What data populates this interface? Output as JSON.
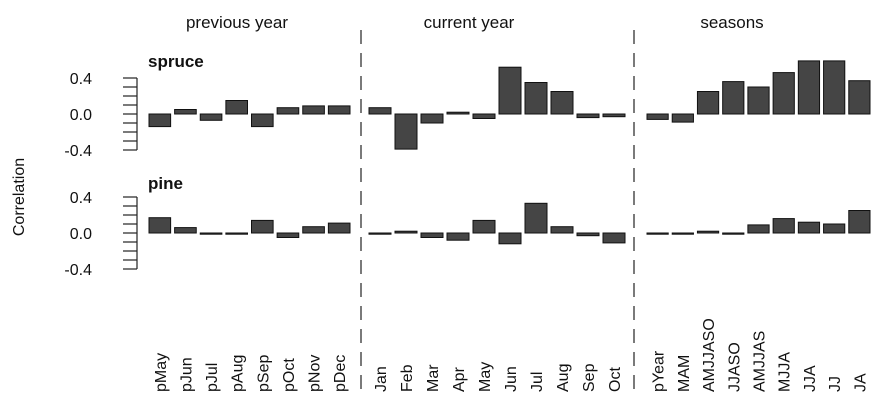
{
  "chart_data": {
    "type": "bar",
    "ylabel": "Correlation",
    "ylim": [
      -0.4,
      0.6
    ],
    "yticks": [
      0.4,
      0.0,
      -0.4
    ],
    "ytick_labels": [
      "0.4",
      "0.0",
      "-0.4"
    ],
    "grid": false,
    "bar_color": "#454545",
    "groups": [
      {
        "title": "previous year",
        "categories": [
          "pMay",
          "pJun",
          "pJul",
          "pAug",
          "pSep",
          "pOct",
          "pNov",
          "pDec"
        ]
      },
      {
        "title": "current year",
        "categories": [
          "Jan",
          "Feb",
          "Mar",
          "Apr",
          "May",
          "Jun",
          "Jul",
          "Aug",
          "Sep",
          "Oct"
        ]
      },
      {
        "title": "seasons",
        "categories": [
          "pYear",
          "MAM",
          "AMJJASO",
          "JJASO",
          "AMJJAS",
          "MJJA",
          "JJA",
          "JJ",
          "JA"
        ]
      }
    ],
    "series": [
      {
        "name": "spruce",
        "values": [
          -0.14,
          0.05,
          -0.07,
          0.15,
          -0.14,
          0.07,
          0.09,
          0.09,
          0.07,
          -0.39,
          -0.1,
          0.02,
          -0.05,
          0.52,
          0.35,
          0.25,
          -0.04,
          -0.03,
          -0.06,
          -0.09,
          0.25,
          0.36,
          0.3,
          0.46,
          0.59,
          0.59,
          0.37
        ]
      },
      {
        "name": "pine",
        "values": [
          0.17,
          0.06,
          -0.01,
          -0.01,
          0.14,
          -0.05,
          0.07,
          0.11,
          0.0,
          0.02,
          -0.05,
          -0.08,
          0.14,
          -0.12,
          0.33,
          0.07,
          -0.03,
          -0.11,
          0.0,
          -0.01,
          0.02,
          0.0,
          0.09,
          0.16,
          0.12,
          0.1,
          0.25
        ]
      }
    ]
  }
}
